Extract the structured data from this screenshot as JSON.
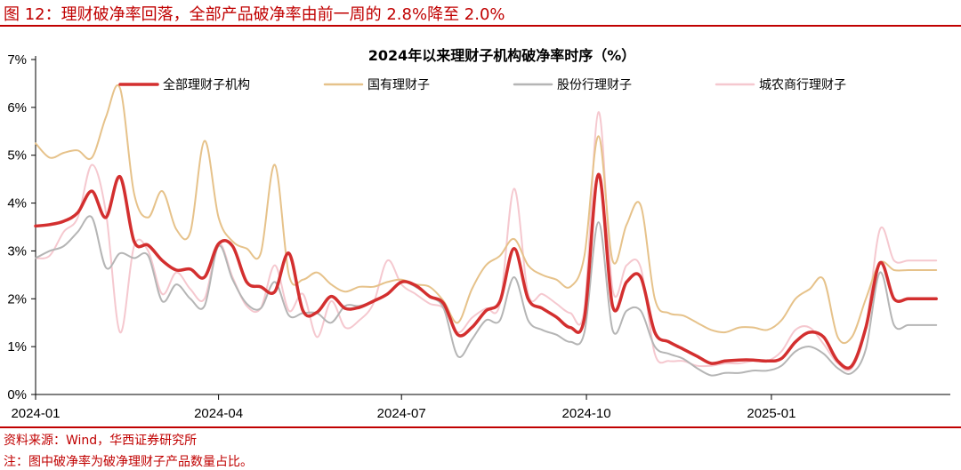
{
  "figure": {
    "title": "图 12：理财破净率回落，全部产品破净率由前一周的 2.8%降至 2.0%",
    "source": "资料来源：Wind，华西证券研究所",
    "note": "注：图中破净率为破净理财子产品数量占比。"
  },
  "chart_data": {
    "type": "line",
    "title": "2024年以来理财子机构破净率时序（%）",
    "xlabel": "",
    "ylabel": "",
    "x_tick_labels": [
      "2024-01",
      "2024-04",
      "2024-07",
      "2024-10",
      "2025-01"
    ],
    "x_range": [
      "2024-01-01",
      "2025-03-31"
    ],
    "y_tick_labels": [
      "0%",
      "1%",
      "2%",
      "3%",
      "4%",
      "5%",
      "6%",
      "7%"
    ],
    "ylim": [
      0,
      7
    ],
    "grid": false,
    "legend_position": "top",
    "x": [
      "2024-01-01",
      "2024-01-08",
      "2024-01-15",
      "2024-01-22",
      "2024-01-29",
      "2024-02-05",
      "2024-02-12",
      "2024-02-19",
      "2024-02-26",
      "2024-03-04",
      "2024-03-11",
      "2024-03-18",
      "2024-03-25",
      "2024-04-01",
      "2024-04-08",
      "2024-04-15",
      "2024-04-22",
      "2024-04-29",
      "2024-05-06",
      "2024-05-13",
      "2024-05-20",
      "2024-05-27",
      "2024-06-03",
      "2024-06-10",
      "2024-06-17",
      "2024-06-24",
      "2024-07-01",
      "2024-07-08",
      "2024-07-15",
      "2024-07-22",
      "2024-07-29",
      "2024-08-05",
      "2024-08-12",
      "2024-08-19",
      "2024-08-26",
      "2024-09-02",
      "2024-09-09",
      "2024-09-16",
      "2024-09-23",
      "2024-09-30",
      "2024-10-07",
      "2024-10-14",
      "2024-10-21",
      "2024-10-28",
      "2024-11-04",
      "2024-11-11",
      "2024-11-18",
      "2024-11-25",
      "2024-12-02",
      "2024-12-09",
      "2024-12-16",
      "2024-12-23",
      "2024-12-30",
      "2025-01-06",
      "2025-01-13",
      "2025-01-20",
      "2025-01-27",
      "2025-02-03",
      "2025-02-10",
      "2025-02-17",
      "2025-02-24",
      "2025-03-03",
      "2025-03-10",
      "2025-03-17",
      "2025-03-24"
    ],
    "series": [
      {
        "name": "全部理财子机构",
        "color": "#d32f2f",
        "width": 3.5,
        "values": [
          3.52,
          3.55,
          3.62,
          3.8,
          4.25,
          3.7,
          4.55,
          3.2,
          3.12,
          2.8,
          2.6,
          2.62,
          2.45,
          3.15,
          3.1,
          2.35,
          2.25,
          2.15,
          2.95,
          1.75,
          1.72,
          2.05,
          1.8,
          1.82,
          1.95,
          2.1,
          2.35,
          2.28,
          2.05,
          1.9,
          1.25,
          1.4,
          1.75,
          1.95,
          3.05,
          2.0,
          1.8,
          1.62,
          1.4,
          1.6,
          4.6,
          1.85,
          2.35,
          2.45,
          1.3,
          1.1,
          0.95,
          0.8,
          0.65,
          0.7,
          0.72,
          0.72,
          0.7,
          0.75,
          1.1,
          1.3,
          1.2,
          0.7,
          0.6,
          1.4,
          2.75,
          2.0,
          2.0,
          2.0,
          2.0
        ]
      },
      {
        "name": "国有理财子",
        "color": "#e6c28a",
        "width": 2,
        "values": [
          5.25,
          4.95,
          5.05,
          5.1,
          4.95,
          5.8,
          6.4,
          4.2,
          3.7,
          4.25,
          3.45,
          3.4,
          5.3,
          3.7,
          3.2,
          3.05,
          2.95,
          4.8,
          2.5,
          2.4,
          2.55,
          2.3,
          2.15,
          2.25,
          2.25,
          2.35,
          2.4,
          2.3,
          2.25,
          1.95,
          1.5,
          2.2,
          2.7,
          2.9,
          3.25,
          2.7,
          2.5,
          2.4,
          2.25,
          2.9,
          5.4,
          2.8,
          3.55,
          3.95,
          2.0,
          1.7,
          1.65,
          1.5,
          1.35,
          1.3,
          1.4,
          1.4,
          1.35,
          1.55,
          2.0,
          2.2,
          2.4,
          1.2,
          1.2,
          2.0,
          2.75,
          2.6,
          2.6,
          2.6,
          2.6
        ]
      },
      {
        "name": "股份行理财子",
        "color": "#b5b5b5",
        "width": 2,
        "values": [
          2.85,
          3.0,
          3.1,
          3.4,
          3.7,
          2.65,
          2.95,
          2.85,
          2.9,
          1.95,
          2.3,
          2.0,
          1.85,
          3.1,
          2.4,
          1.9,
          1.8,
          2.35,
          1.65,
          1.7,
          1.7,
          1.5,
          1.85,
          1.85,
          1.95,
          2.1,
          2.35,
          2.25,
          2.05,
          1.8,
          0.8,
          1.15,
          1.55,
          1.55,
          2.45,
          1.55,
          1.35,
          1.25,
          1.1,
          1.3,
          3.6,
          1.35,
          1.75,
          1.75,
          1.0,
          0.85,
          0.75,
          0.55,
          0.4,
          0.45,
          0.45,
          0.5,
          0.5,
          0.6,
          0.9,
          1.0,
          0.85,
          0.55,
          0.45,
          0.95,
          2.55,
          1.45,
          1.45,
          1.45,
          1.45
        ]
      },
      {
        "name": "城农商行理财子",
        "color": "#f5c8cf",
        "width": 2,
        "values": [
          2.85,
          2.9,
          3.4,
          3.7,
          4.8,
          3.8,
          1.3,
          3.1,
          3.0,
          2.1,
          2.55,
          2.2,
          2.0,
          3.15,
          2.45,
          1.85,
          1.8,
          2.7,
          1.75,
          2.1,
          1.2,
          1.95,
          1.4,
          1.55,
          1.9,
          2.8,
          2.3,
          2.1,
          1.9,
          1.8,
          1.3,
          1.6,
          1.8,
          1.9,
          4.3,
          2.1,
          2.1,
          1.9,
          1.7,
          1.8,
          5.9,
          2.2,
          2.7,
          2.65,
          0.85,
          0.7,
          0.7,
          0.6,
          0.6,
          0.65,
          0.65,
          0.7,
          0.7,
          0.9,
          1.35,
          1.4,
          1.05,
          0.65,
          0.55,
          1.4,
          3.45,
          2.8,
          2.8,
          2.8,
          2.8
        ]
      }
    ]
  }
}
